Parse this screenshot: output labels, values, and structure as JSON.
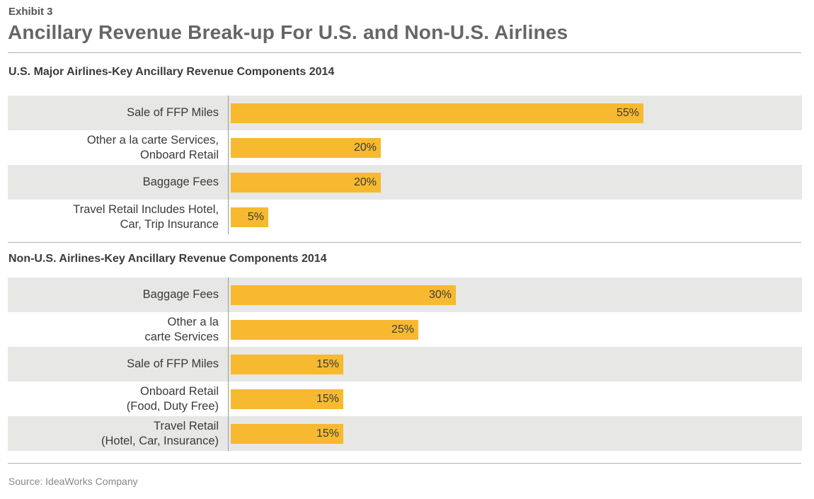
{
  "exhibit": "Exhibit 3",
  "title": "Ancillary Revenue Break-up For U.S. and Non-U.S. Airlines",
  "source": "Source: IdeaWorks Company",
  "colors": {
    "bar": "#f6b92f",
    "shade": "#e7e7e6"
  },
  "chart_data": [
    {
      "type": "bar",
      "orientation": "horizontal",
      "title": "U.S. Major Airlines-Key Ancillary Revenue Components 2014",
      "unit": "%",
      "categories": [
        "Sale of FFP Miles",
        "Other a la carte Services,\nOnboard Retail",
        "Baggage Fees",
        "Travel Retail Includes Hotel,\nCar, Trip Insurance"
      ],
      "values": [
        55,
        20,
        20,
        5
      ],
      "labels": [
        "55%",
        "20%",
        "20%",
        "5%"
      ],
      "grid": false,
      "legend": "none"
    },
    {
      "type": "bar",
      "orientation": "horizontal",
      "title": "Non-U.S. Airlines-Key Ancillary Revenue Components 2014",
      "unit": "%",
      "categories": [
        "Baggage Fees",
        "Other a la\ncarte Services",
        "Sale of FFP Miles",
        "Onboard Retail\n(Food, Duty Free)",
        "Travel Retail\n(Hotel, Car, Insurance)"
      ],
      "values": [
        30,
        25,
        15,
        15,
        15
      ],
      "labels": [
        "30%",
        "25%",
        "15%",
        "15%",
        "15%"
      ],
      "grid": false,
      "legend": "none"
    }
  ]
}
